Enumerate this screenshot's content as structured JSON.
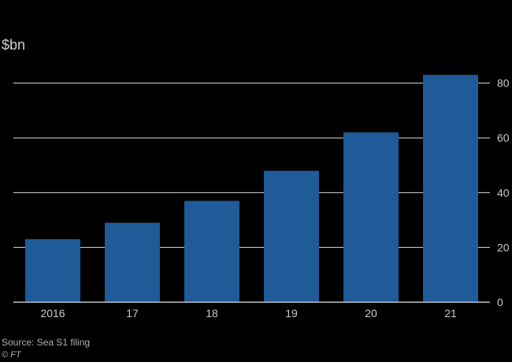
{
  "chart_data": {
    "type": "bar",
    "unit_label": "$bn",
    "categories": [
      "2016",
      "17",
      "18",
      "19",
      "20",
      "21"
    ],
    "values": [
      23,
      29,
      37,
      48,
      62,
      83
    ],
    "ylim": [
      0,
      85
    ],
    "yticks": [
      0,
      20,
      40,
      60,
      80
    ],
    "grid": true,
    "y_axis_side": "right",
    "bar_color": "#1f5a99",
    "grid_color": "#dddddd",
    "background": "#000000"
  },
  "footer": {
    "source": "Source: Sea S1 filing",
    "credit": "© FT"
  }
}
